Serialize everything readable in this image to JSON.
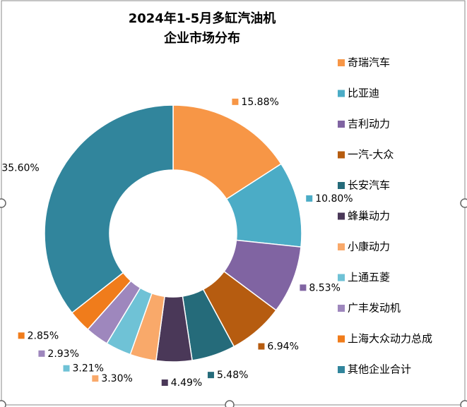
{
  "chart_data": {
    "type": "donut",
    "title": [
      "2024年1-5月多缸汽油机",
      "企业市场分布"
    ],
    "categories": [
      "奇瑞汽车",
      "比亚迪",
      "吉利动力",
      "一汽-大众",
      "长安汽车",
      "蜂巢动力",
      "小康动力",
      "上通五菱",
      "广丰发动机",
      "上海大众动力总成",
      "其他企业合计"
    ],
    "values": [
      15.88,
      10.8,
      8.53,
      6.94,
      5.48,
      4.49,
      3.3,
      3.21,
      2.93,
      2.85,
      35.6
    ],
    "value_labels": [
      "15.88%",
      "10.80%",
      "8.53%",
      "6.94%",
      "5.48%",
      "4.49%",
      "3.30%",
      "3.21%",
      "2.93%",
      "2.85%",
      "35.60%"
    ],
    "colors": [
      "#f79646",
      "#4bacc6",
      "#8064a2",
      "#b65c10",
      "#256b7a",
      "#4a3858",
      "#f9a96a",
      "#6fc2d6",
      "#9e87bd",
      "#f07c1b",
      "#31859c"
    ],
    "legend": "right"
  }
}
